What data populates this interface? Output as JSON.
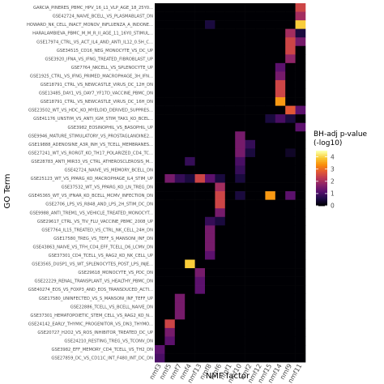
{
  "chart_data": {
    "type": "heatmap",
    "title": "",
    "xlabel": "NMF factor",
    "ylabel": "GO Term",
    "x": [
      "nmf3",
      "nmf5",
      "nmf7",
      "nmf4",
      "nmf13",
      "nmf8",
      "nmf6",
      "nmf1",
      "nmf10",
      "nmf2",
      "nmf12",
      "nmf15",
      "nmf14",
      "nmf9",
      "nmf11"
    ],
    "y": [
      "GARCIA_PINERES_PBMC_HPV_16_L1_VLP_AGE_18_25Y0...",
      "GSE42724_NAIVE_BCELL_VS_PLASMABLAST_DN",
      "HOWARD_NK_CELL_INACT_MONOV_INFLUENZA_A_INDONE...",
      "HARALAMBIEVA_PBMC_M_M_R_II_AGE_11_16Y0_STIMUL...",
      "GSE17974_CTRL_VS_ACT_IL4_AND_ANTI_IL12_0.5H_C...",
      "GSE34515_CD16_NEG_MONOCYTE_VS_DC_UP",
      "GSE3920_IFNA_VS_IFNG_TREATED_FIBROBLAST_UP",
      "GSE7764_NKCELL_VS_SPLENOCYTE_UP",
      "GSE1925_CTRL_VS_IFNG_PRIMED_MACROPHAGE_3H_IFN...",
      "GSE18791_CTRL_VS_NEWCASTLE_VIRUS_DC_12H_DN",
      "GSE13485_DAY1_VS_DAY7_YF17D_VACCINE_PBMC_DN",
      "GSE18791_CTRL_VS_NEWCASTLE_VIRUS_DC_16H_DN",
      "GSE23502_WT_VS_HDC_KO_MYELOID_DERIVED_SUPPRES...",
      "GSE41176_UNSTIM_VS_ANTI_IGM_STIM_TAK1_KO_BCEL...",
      "GSE3982_EOSINOPHIL_VS_BASOPHIL_UP",
      "GSE9946_MATURE_STIMULATORY_VS_PROSTAGLANDINE2...",
      "GSE19888_ADENOSINE_A3R_INH_VS_TCELL_MEMBRANES...",
      "GSE27241_WT_VS_RORGT_KO_TH17_POLARIZED_CD4_TC...",
      "GSE28783_ANTI_MIR33_VS_CTRL_ATHEROSCLEROSIS_M...",
      "GSE42724_NAIVE_VS_MEMORY_BCELL_DN",
      "GSE25123_WT_VS_PPARG_KO_MACROPHAGE_IL4_STIM_UP",
      "GSE37532_WT_VS_PPARG_KO_LN_TREG_DN",
      "GSE45365_WT_VS_IFNAR_KO_BCELL_MCMV_INFECTION_DN",
      "GSE2706_LPS_VS_R848_AND_LPS_2H_STIM_DC_DN",
      "GSE9988_ANTI_TREM1_VS_VEHICLE_TREATED_MONOCYT...",
      "GSE29617_CTRL_VS_TIV_FLU_VACCINE_PBMC_2008_UP",
      "GSE7764_IL15_TREATED_VS_CTRL_NK_CELL_24H_DN",
      "GSE17580_TREG_VS_TEFF_S_MANSONI_INF_DN",
      "GSE43863_NAIVE_VS_TFH_CD4_EFF_TCELL_D6_LCMV_DN",
      "GSE37301_CD4_TCELL_VS_RAG2_KO_NK_CELL_UP",
      "GSE3565_DUSP1_VS_WT_SPLENOCYTES_POST_LPS_INJE...",
      "GSE29618_MONOCYTE_VS_PDC_DN",
      "GSE22229_RENAL_TRANSPLANT_VS_HEALTHY_PBMC_DN",
      "GSE40274_EOS_VS_FOXP3_AND_EOS_TRANSDUCED_ACTI...",
      "GSE17580_UNINFECTED_VS_S_MANSONI_INF_TEFF_UP",
      "GSE22886_TCELL_VS_BCELL_NAIVE_DN",
      "GSE37301_HEMATOPOIETIC_STEM_CELL_VS_RAG2_KO_N...",
      "GSE24142_EARLY_THYMIC_PROGENITOR_VS_DN3_THYMO...",
      "GSE20727_H2O2_VS_ROS_INHIBITOR_TREATED_DC_UP",
      "GSE24210_RESTING_TREG_VS_TCONV_DN",
      "GSE3982_EFF_MEMORY_CD4_TCELL_VS_TH2_DN",
      "GSE27859_DC_VS_CD11C_INT_F480_INT_DC_DN"
    ],
    "values": [
      [
        0,
        0,
        0,
        0,
        0,
        0,
        0,
        0,
        0,
        0,
        0,
        0,
        0,
        0,
        2.5
      ],
      [
        0,
        0,
        0,
        0,
        0,
        0,
        0,
        0,
        0,
        0,
        0,
        0,
        0,
        0,
        2.0
      ],
      [
        0,
        0,
        0,
        0,
        0,
        0.5,
        0,
        0,
        0,
        0,
        0,
        0,
        0,
        0,
        4.0
      ],
      [
        0,
        0,
        0,
        0,
        0,
        0,
        0,
        0,
        0,
        0,
        0,
        0,
        0,
        2.0,
        0.5
      ],
      [
        0,
        0,
        0,
        0,
        0,
        0,
        0,
        0,
        0,
        0,
        0,
        0,
        0,
        2.5,
        1.5
      ],
      [
        0,
        0,
        0,
        0,
        0,
        0,
        0,
        0,
        0,
        0,
        0,
        0,
        0,
        2.5,
        0
      ],
      [
        0,
        0,
        0,
        0,
        0,
        0,
        0,
        0,
        0,
        0,
        0,
        0,
        0,
        1.8,
        0
      ],
      [
        0,
        0,
        0,
        0,
        0,
        0,
        0,
        0,
        0,
        0,
        0,
        0,
        1.2,
        0,
        0
      ],
      [
        0,
        0,
        0,
        0,
        0,
        0,
        0,
        0,
        0,
        0,
        0,
        0,
        1.5,
        0,
        0
      ],
      [
        0,
        0,
        0,
        0,
        0,
        0,
        0,
        0,
        0,
        0,
        0,
        0,
        2.5,
        0,
        0
      ],
      [
        0,
        0,
        0,
        0,
        0,
        0,
        0,
        0,
        0,
        0,
        0,
        0,
        2.5,
        0,
        0
      ],
      [
        0,
        0,
        0,
        0,
        0,
        0,
        0,
        0,
        0,
        0,
        0,
        0,
        3.5,
        0,
        0
      ],
      [
        0,
        0,
        0,
        0,
        0,
        0,
        0,
        0,
        0,
        0,
        0,
        0,
        0,
        2.8,
        1.2
      ],
      [
        0,
        0,
        0,
        0,
        0,
        0,
        0,
        0,
        0,
        0,
        0,
        0.5,
        1.0,
        0.5,
        0
      ],
      [
        0,
        0,
        0,
        0,
        0,
        0,
        0,
        0,
        0,
        0,
        0,
        0,
        0,
        0,
        1.2
      ],
      [
        0,
        0,
        0,
        0,
        0,
        0,
        0,
        0,
        1.5,
        0,
        0,
        0,
        0,
        0,
        0
      ],
      [
        0,
        0,
        0,
        0,
        0,
        0,
        0,
        0,
        1.5,
        0.8,
        0,
        0,
        0,
        0,
        0
      ],
      [
        0,
        0,
        0,
        0,
        0,
        0,
        0,
        0,
        1.5,
        0.5,
        0,
        0,
        0,
        0.3,
        0
      ],
      [
        0,
        0,
        0,
        0.8,
        0,
        0,
        0,
        0,
        1.0,
        0,
        0,
        0,
        0,
        0,
        0
      ],
      [
        0,
        0,
        0,
        0,
        0,
        0,
        0,
        0,
        0.8,
        0,
        0,
        0,
        0,
        0,
        0
      ],
      [
        0,
        1.5,
        0.8,
        0.5,
        2.5,
        1.2,
        0.5,
        0,
        0.5,
        0,
        0,
        0,
        0,
        0,
        0
      ],
      [
        0,
        0,
        0,
        0,
        0,
        0,
        2.0,
        0,
        0,
        0,
        0,
        0,
        0,
        0,
        0
      ],
      [
        0,
        0,
        0,
        0,
        0,
        0,
        2.5,
        0,
        0.5,
        0,
        0,
        3.5,
        0,
        1.2,
        0
      ],
      [
        0,
        0,
        0,
        0,
        0,
        0,
        2.5,
        0,
        0,
        0,
        0,
        0,
        0,
        0,
        0
      ],
      [
        0,
        0,
        0,
        0,
        0,
        0,
        1.5,
        0,
        0,
        0,
        0,
        0,
        0,
        0,
        0
      ],
      [
        0,
        0,
        0,
        0,
        0,
        0.8,
        0.5,
        0,
        0,
        0,
        0,
        0,
        0,
        0,
        0
      ],
      [
        0,
        0,
        0,
        0,
        0,
        1.5,
        0,
        0,
        0,
        0,
        0,
        0,
        0,
        0,
        0
      ],
      [
        0,
        0,
        0,
        0,
        0,
        1.5,
        0,
        0,
        0,
        0,
        0,
        0,
        0,
        0,
        0
      ],
      [
        0,
        0,
        0,
        0,
        0,
        1.5,
        0,
        0,
        0,
        0,
        0,
        0,
        0,
        0,
        0
      ],
      [
        0,
        0,
        0,
        0,
        0,
        1.2,
        0,
        0,
        0,
        0,
        0,
        0,
        0,
        0,
        0
      ],
      [
        0,
        0,
        0,
        4.0,
        0,
        0,
        0,
        0,
        0,
        0,
        0,
        0,
        0,
        0,
        0
      ],
      [
        0,
        0,
        0,
        0,
        1.5,
        0,
        0,
        0,
        0,
        0,
        0,
        0,
        0,
        0,
        0
      ],
      [
        0,
        0,
        0,
        0,
        1.2,
        0,
        0,
        0,
        0,
        0,
        0,
        0,
        0,
        0,
        0
      ],
      [
        0,
        0,
        0,
        0,
        1.2,
        0,
        0,
        0,
        0,
        0,
        0,
        0,
        0,
        0,
        0
      ],
      [
        0,
        0,
        1.5,
        0,
        0,
        0,
        0,
        0,
        0,
        0,
        0,
        0,
        0,
        0,
        0
      ],
      [
        0,
        0,
        1.5,
        0,
        0,
        0,
        0,
        0,
        0,
        0,
        0,
        0,
        0,
        0,
        0
      ],
      [
        0,
        0,
        1.5,
        0,
        0,
        0,
        0,
        0,
        0,
        0,
        0,
        0,
        0,
        0,
        0
      ],
      [
        0,
        2.5,
        0,
        0,
        0,
        0,
        0,
        0,
        0,
        0,
        0,
        0,
        0,
        0,
        0
      ],
      [
        0,
        1.5,
        0,
        0,
        0,
        0,
        0,
        0,
        0,
        0,
        0,
        0,
        0,
        0,
        0
      ],
      [
        0,
        1.2,
        0,
        0,
        0,
        0,
        0,
        0,
        0,
        0,
        0,
        0,
        0,
        0,
        0
      ],
      [
        1.2,
        0,
        0,
        0,
        0,
        0,
        0,
        0,
        0,
        0,
        0,
        0,
        0,
        0,
        0
      ],
      [
        1.0,
        0,
        0,
        0,
        0,
        0,
        0,
        0,
        0,
        0,
        0,
        0,
        0,
        0,
        0
      ]
    ],
    "colorbar": {
      "title": "BH-adj p-value\n(-log10)",
      "range": [
        0,
        4.5
      ],
      "ticks": [
        0,
        1,
        2,
        3,
        4
      ],
      "colormap": "inferno"
    },
    "legend_position": "right",
    "grid": false
  }
}
